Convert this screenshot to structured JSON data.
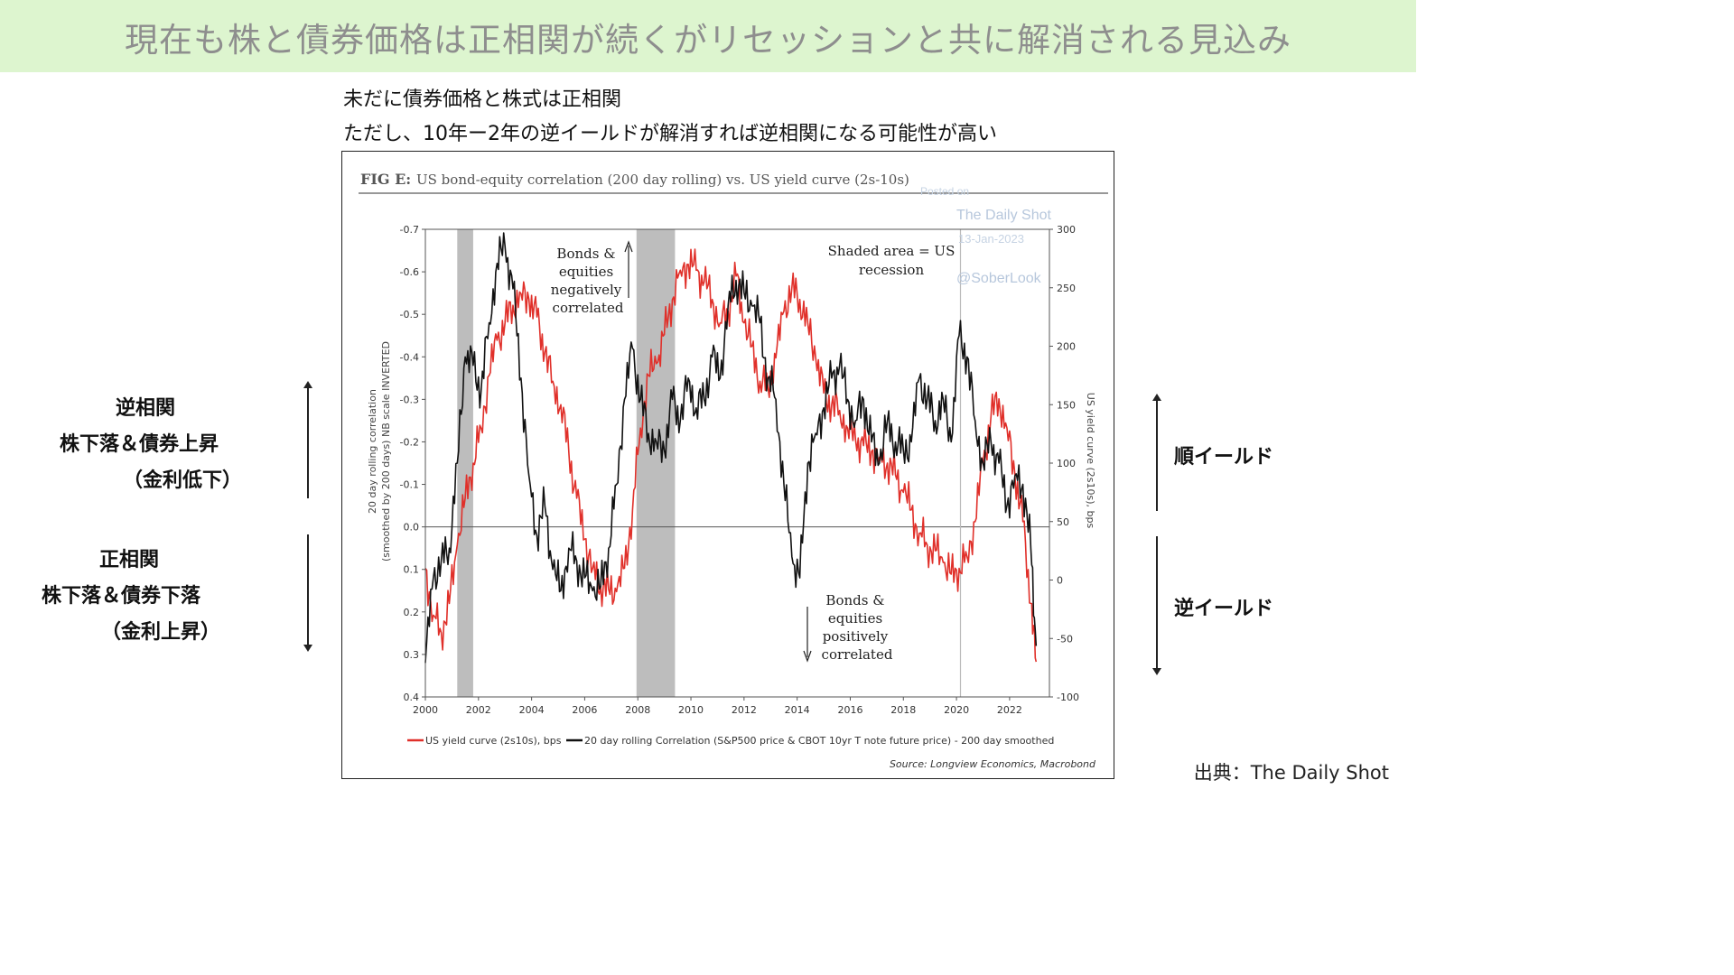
{
  "banner": {
    "title": "現在も株と債券価格は正相関が続くがリセッションと共に解消される見込み"
  },
  "subtitle": {
    "line1": "未だに債券価格と株式は正相関",
    "line2": "ただし、10年ー2年の逆イールドが解消すれば逆相関になる可能性が高い"
  },
  "left_labels": {
    "upper": {
      "line1": "逆相関",
      "line2": "株下落＆債券上昇",
      "line3": "（金利低下）"
    },
    "lower": {
      "line1": "正相関",
      "line2": "株下落＆債券下落",
      "line3": "（金利上昇）"
    }
  },
  "right_labels": {
    "upper": "順イールド",
    "lower": "逆イールド"
  },
  "source_text": "出典：The Daily Shot",
  "chart_data": {
    "type": "line",
    "fig_label": "FIG E:",
    "title": "US bond-equity correlation (200 day rolling) vs. US yield curve (2s-10s)",
    "watermark": [
      "Posted on",
      "The Daily Shot",
      "13-Jan-2023",
      "@SoberLook"
    ],
    "left_axis": {
      "label_line1": "20 day rolling correlation",
      "label_line2": "(smoothed by 200 days) NB scale INVERTED",
      "ylim": [
        -0.7,
        0.4
      ],
      "inverted": true,
      "ticks": [
        "-0.7",
        "-0.6",
        "-0.5",
        "-0.4",
        "-0.3",
        "-0.2",
        "-0.1",
        "0.0",
        "0.1",
        "0.2",
        "0.3",
        "0.4"
      ]
    },
    "right_axis": {
      "label": "US yield curve (2s10s), bps",
      "ylim": [
        -100,
        300
      ],
      "ticks": [
        "300",
        "250",
        "200",
        "150",
        "100",
        "50",
        "0",
        "-50",
        "-100"
      ]
    },
    "x_axis": {
      "xlim": [
        2000,
        2023.5
      ],
      "ticks": [
        "2000",
        "2002",
        "2004",
        "2006",
        "2008",
        "2010",
        "2012",
        "2014",
        "2016",
        "2018",
        "2020",
        "2022"
      ]
    },
    "recessions": [
      [
        2001.2,
        2001.8
      ],
      [
        2007.95,
        2009.4
      ]
    ],
    "covid_line": 2020.15,
    "annotations": {
      "neg": [
        "Bonds &",
        "equities",
        "negatively",
        "correlated"
      ],
      "pos": [
        "Bonds &",
        "equities",
        "positively",
        "correlated"
      ],
      "shaded": [
        "Shaded area = US",
        "recession"
      ]
    },
    "series": [
      {
        "name": "US yield curve (2s10s), bps",
        "axis": "right",
        "color": "#e0302a",
        "x": [
          2000.0,
          2000.3,
          2000.6,
          2000.9,
          2001.2,
          2001.5,
          2001.8,
          2002.1,
          2002.4,
          2002.7,
          2003.0,
          2003.3,
          2003.6,
          2003.9,
          2004.2,
          2004.5,
          2004.8,
          2005.1,
          2005.4,
          2005.7,
          2006.0,
          2006.3,
          2006.6,
          2006.9,
          2007.2,
          2007.5,
          2007.8,
          2008.1,
          2008.4,
          2008.7,
          2009.0,
          2009.3,
          2009.6,
          2009.9,
          2010.2,
          2010.5,
          2010.8,
          2011.1,
          2011.4,
          2011.7,
          2012.0,
          2012.3,
          2012.6,
          2012.9,
          2013.2,
          2013.5,
          2013.8,
          2014.1,
          2014.4,
          2014.7,
          2015.0,
          2015.3,
          2015.6,
          2015.9,
          2016.2,
          2016.5,
          2016.8,
          2017.1,
          2017.4,
          2017.7,
          2018.0,
          2018.3,
          2018.6,
          2018.9,
          2019.2,
          2019.5,
          2019.8,
          2020.1,
          2020.4,
          2020.7,
          2021.0,
          2021.3,
          2021.6,
          2021.9,
          2022.2,
          2022.5,
          2022.8,
          2023.0
        ],
        "values": [
          10,
          -30,
          -45,
          -20,
          30,
          70,
          100,
          130,
          175,
          205,
          220,
          235,
          245,
          240,
          225,
          195,
          170,
          150,
          110,
          70,
          35,
          10,
          -5,
          -8,
          -10,
          10,
          60,
          130,
          175,
          185,
          210,
          240,
          265,
          270,
          265,
          255,
          240,
          220,
          230,
          260,
          220,
          200,
          170,
          165,
          190,
          230,
          250,
          240,
          220,
          190,
          160,
          150,
          145,
          130,
          120,
          115,
          110,
          105,
          100,
          90,
          75,
          60,
          40,
          30,
          25,
          15,
          5,
          10,
          20,
          50,
          100,
          140,
          155,
          130,
          90,
          50,
          -20,
          -70
        ]
      },
      {
        "name": "20 day rolling Correlation (S&P500 price & CBOT 10yr T note future price) - 200 day smoothed",
        "axis": "left",
        "color": "#111111",
        "x": [
          2000.0,
          2000.3,
          2000.6,
          2000.9,
          2001.2,
          2001.5,
          2001.8,
          2002.1,
          2002.4,
          2002.7,
          2003.0,
          2003.3,
          2003.6,
          2003.9,
          2004.2,
          2004.5,
          2004.8,
          2005.1,
          2005.4,
          2005.7,
          2006.0,
          2006.3,
          2006.6,
          2006.9,
          2007.2,
          2007.5,
          2007.8,
          2008.1,
          2008.4,
          2008.7,
          2009.0,
          2009.3,
          2009.6,
          2009.9,
          2010.2,
          2010.5,
          2010.8,
          2011.1,
          2011.4,
          2011.7,
          2012.0,
          2012.3,
          2012.6,
          2012.9,
          2013.2,
          2013.5,
          2013.8,
          2014.1,
          2014.4,
          2014.7,
          2015.0,
          2015.3,
          2015.6,
          2015.9,
          2016.2,
          2016.5,
          2016.8,
          2017.1,
          2017.4,
          2017.7,
          2018.0,
          2018.3,
          2018.6,
          2018.9,
          2019.2,
          2019.5,
          2019.8,
          2020.1,
          2020.4,
          2020.7,
          2021.0,
          2021.3,
          2021.6,
          2021.9,
          2022.2,
          2022.5,
          2022.8,
          2023.0
        ],
        "values": [
          0.32,
          0.12,
          0.08,
          0.05,
          -0.15,
          -0.4,
          -0.38,
          -0.32,
          -0.48,
          -0.62,
          -0.66,
          -0.56,
          -0.35,
          -0.12,
          0.02,
          -0.05,
          0.1,
          0.15,
          0.05,
          0.08,
          0.12,
          0.15,
          0.14,
          0.05,
          -0.1,
          -0.3,
          -0.42,
          -0.3,
          -0.22,
          -0.2,
          -0.18,
          -0.3,
          -0.25,
          -0.35,
          -0.28,
          -0.3,
          -0.4,
          -0.35,
          -0.52,
          -0.58,
          -0.55,
          -0.52,
          -0.48,
          -0.35,
          -0.3,
          -0.1,
          0.07,
          0.12,
          -0.15,
          -0.22,
          -0.28,
          -0.35,
          -0.38,
          -0.3,
          -0.25,
          -0.3,
          -0.2,
          -0.15,
          -0.25,
          -0.2,
          -0.18,
          -0.2,
          -0.35,
          -0.3,
          -0.25,
          -0.3,
          -0.2,
          -0.45,
          -0.4,
          -0.25,
          -0.15,
          -0.2,
          -0.15,
          -0.05,
          -0.12,
          -0.1,
          0.05,
          0.28
        ]
      }
    ],
    "source": "Source: Longview Economics, Macrobond"
  }
}
